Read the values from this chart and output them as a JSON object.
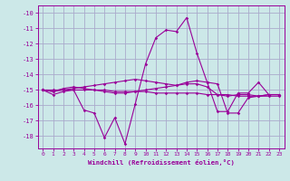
{
  "xlabel": "Windchill (Refroidissement éolien,°C)",
  "background_color": "#cce8e8",
  "grid_color": "#aaaacc",
  "line_color": "#990099",
  "x_values": [
    0,
    1,
    2,
    3,
    4,
    5,
    6,
    7,
    8,
    9,
    10,
    11,
    12,
    13,
    14,
    15,
    16,
    17,
    18,
    19,
    20,
    21,
    22,
    23
  ],
  "series1": [
    -15.0,
    -15.3,
    -15.1,
    -15.0,
    -16.3,
    -16.5,
    -18.1,
    -16.8,
    -18.5,
    -15.9,
    -13.3,
    -11.6,
    -11.1,
    -11.2,
    -10.3,
    -12.6,
    -14.5,
    -16.4,
    -16.4,
    -15.2,
    -15.2,
    -14.5,
    -15.3,
    -15.3
  ],
  "series2": [
    -15.0,
    -15.1,
    -14.9,
    -14.8,
    -14.9,
    -15.0,
    -15.1,
    -15.2,
    -15.2,
    -15.1,
    -15.0,
    -14.9,
    -14.8,
    -14.7,
    -14.6,
    -14.6,
    -14.8,
    -15.3,
    -15.4,
    -15.3,
    -15.3,
    -15.4,
    -15.3,
    -15.3
  ],
  "series3": [
    -15.0,
    -15.1,
    -15.0,
    -14.9,
    -14.8,
    -14.7,
    -14.6,
    -14.5,
    -14.4,
    -14.3,
    -14.4,
    -14.5,
    -14.6,
    -14.7,
    -14.5,
    -14.4,
    -14.5,
    -14.6,
    -16.5,
    -16.5,
    -15.5,
    -15.4,
    -15.3,
    -15.3
  ],
  "series4": [
    -15.0,
    -15.0,
    -15.0,
    -15.0,
    -15.0,
    -15.0,
    -15.0,
    -15.1,
    -15.1,
    -15.1,
    -15.1,
    -15.2,
    -15.2,
    -15.2,
    -15.2,
    -15.2,
    -15.3,
    -15.3,
    -15.3,
    -15.4,
    -15.4,
    -15.4,
    -15.4,
    -15.4
  ],
  "ylim": [
    -18.8,
    -9.5
  ],
  "yticks": [
    -18,
    -17,
    -16,
    -15,
    -14,
    -13,
    -12,
    -11,
    -10
  ],
  "xlim": [
    -0.5,
    23.5
  ],
  "xtick_labels": [
    "0",
    "1",
    "2",
    "3",
    "4",
    "5",
    "6",
    "7",
    "8",
    "9",
    "10",
    "11",
    "12",
    "13",
    "14",
    "15",
    "16",
    "17",
    "18",
    "19",
    "20",
    "21",
    "22",
    "23"
  ]
}
